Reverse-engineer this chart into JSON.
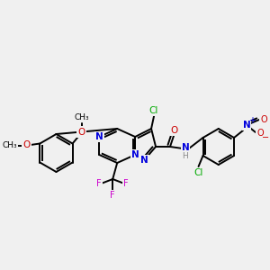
{
  "background_color": "#f0f0f0",
  "bond_color": "#000000",
  "atoms": {
    "N": "#0000dd",
    "O": "#cc0000",
    "F": "#cc00cc",
    "Cl": "#00aa00",
    "H": "#888888",
    "C": "#000000"
  },
  "figsize": [
    3.0,
    3.0
  ],
  "dpi": 100
}
